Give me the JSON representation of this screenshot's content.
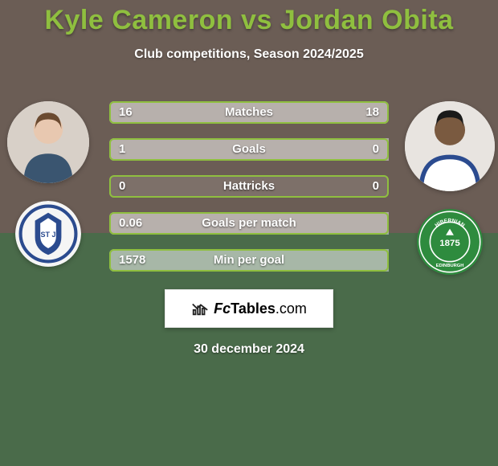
{
  "colors": {
    "bg_top": "#6b5d55",
    "bg_bottom": "#4a6b4a",
    "title": "#8fbf3f",
    "bar_border": "#8fbf3f",
    "bar_fill": "rgba(255,255,255,0.45)",
    "bar_track": "rgba(255,255,255,0.12)",
    "text_white": "#ffffff",
    "crest1_bg": "#f5f5f5",
    "crest1_accent": "#2b4b8f",
    "crest2_bg": "#2e8b3e",
    "crest2_accent": "#ffffff",
    "avatar_bg": "#e7e7e7"
  },
  "title_parts": {
    "p1": "Kyle Cameron",
    "vs": " vs ",
    "p2": "Jordan Obita"
  },
  "subtitle": "Club competitions, Season 2024/2025",
  "stats": [
    {
      "label": "Matches",
      "left_val": "16",
      "right_val": "18",
      "left_pct": 47,
      "right_pct": 53
    },
    {
      "label": "Goals",
      "left_val": "1",
      "right_val": "0",
      "left_pct": 100,
      "right_pct": 0
    },
    {
      "label": "Hattricks",
      "left_val": "0",
      "right_val": "0",
      "left_pct": 0,
      "right_pct": 0
    },
    {
      "label": "Goals per match",
      "left_val": "0.06",
      "right_val": "",
      "left_pct": 100,
      "right_pct": 0
    },
    {
      "label": "Min per goal",
      "left_val": "1578",
      "right_val": "",
      "left_pct": 100,
      "right_pct": 0
    }
  ],
  "player1": {
    "crest_text": "ST J"
  },
  "player2": {
    "crest_text": "1875",
    "crest_sub": "HIBERNIAN"
  },
  "brand": {
    "fc": "Fc",
    "tables": "Tables",
    "dotcom": ".com"
  },
  "date": "30 december 2024"
}
